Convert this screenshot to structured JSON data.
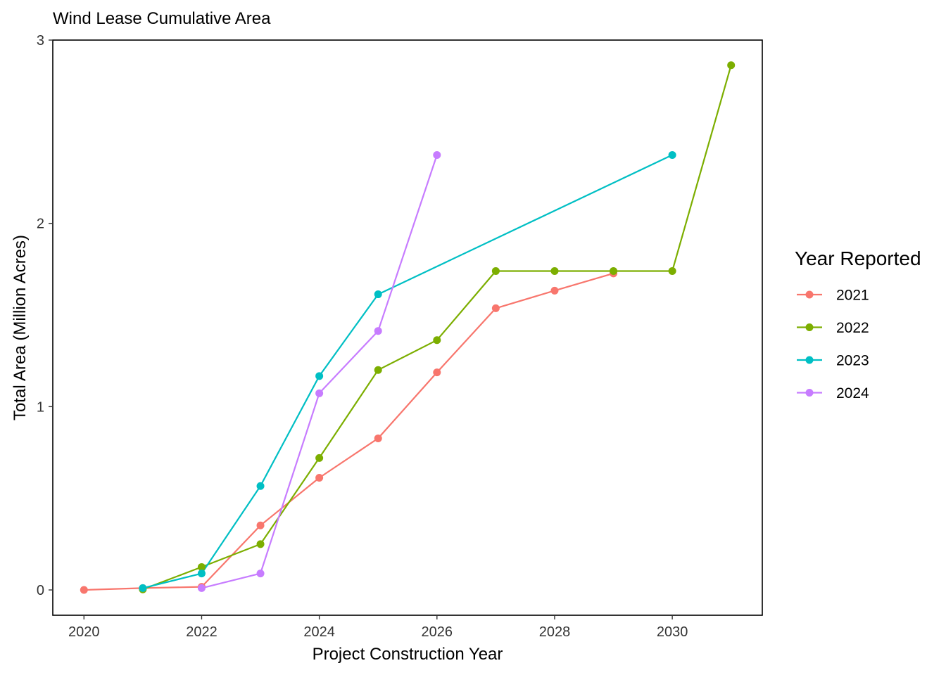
{
  "chart_data": {
    "type": "line",
    "title": "Wind Lease Cumulative Area",
    "xlabel": "Project Construction Year",
    "ylabel": "Total Area (Million Acres)",
    "xlim": [
      2019.47,
      2031.53
    ],
    "ylim": [
      -0.138,
      3.0
    ],
    "x_ticks": [
      2020,
      2022,
      2024,
      2026,
      2028,
      2030
    ],
    "y_ticks": [
      0,
      1,
      2,
      3
    ],
    "grid": false,
    "legend": {
      "title": "Year Reported",
      "position": "right"
    },
    "series": [
      {
        "name": "2021",
        "color": "#F8766D",
        "x": [
          2020,
          2021,
          2022,
          2023,
          2024,
          2025,
          2026,
          2027,
          2028,
          2029
        ],
        "y": [
          0.0,
          0.01,
          0.017,
          0.352,
          0.612,
          0.827,
          1.187,
          1.537,
          1.633,
          1.727
        ]
      },
      {
        "name": "2022",
        "color": "#7CAE00",
        "x": [
          2021,
          2022,
          2023,
          2024,
          2025,
          2026,
          2027,
          2028,
          2029,
          2030,
          2031
        ],
        "y": [
          0.003,
          0.125,
          0.25,
          0.72,
          1.2,
          1.363,
          1.74,
          1.74,
          1.74,
          1.74,
          2.863
        ]
      },
      {
        "name": "2023",
        "color": "#00BFC4",
        "x": [
          2021,
          2022,
          2023,
          2024,
          2025,
          2030
        ],
        "y": [
          0.01,
          0.09,
          0.567,
          1.167,
          1.613,
          2.373
        ]
      },
      {
        "name": "2024",
        "color": "#C77CFF",
        "x": [
          2022,
          2023,
          2024,
          2025,
          2026
        ],
        "y": [
          0.01,
          0.09,
          1.073,
          1.413,
          2.373
        ]
      }
    ]
  }
}
